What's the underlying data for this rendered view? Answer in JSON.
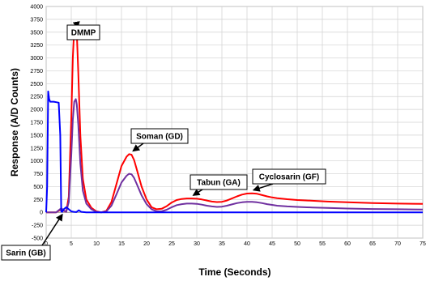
{
  "chart_data": {
    "type": "line",
    "title": "",
    "xlabel": "Time (Seconds)",
    "ylabel": "Response (A/D Counts)",
    "xlim": [
      0,
      75
    ],
    "ylim": [
      -500,
      4000
    ],
    "x_ticks": [
      0,
      5,
      10,
      15,
      20,
      25,
      30,
      35,
      40,
      45,
      50,
      55,
      60,
      65,
      70,
      75
    ],
    "y_ticks": [
      -500,
      -250,
      0,
      250,
      500,
      750,
      1000,
      1250,
      1500,
      1750,
      2000,
      2250,
      2500,
      2750,
      3000,
      3250,
      3500,
      3750,
      4000
    ],
    "grid": true,
    "colors": {
      "red": "#ff0000",
      "purple": "#7030a0",
      "blue": "#0000ff"
    },
    "series": [
      {
        "color": "#ff0000",
        "x": [
          0,
          2,
          3,
          3.5,
          4,
          4.5,
          5,
          5.3,
          5.6,
          5.9,
          6.1,
          6.4,
          6.8,
          7.3,
          8,
          9,
          10,
          11,
          12,
          13,
          14,
          15,
          16,
          16.5,
          17,
          17.5,
          18,
          19,
          20,
          21,
          22,
          23,
          24,
          25,
          26,
          27,
          28,
          29,
          30,
          31,
          32,
          33,
          34,
          35,
          36,
          37,
          38,
          39,
          40,
          41,
          42,
          43,
          44,
          45,
          46,
          48,
          50,
          53,
          56,
          60,
          65,
          70,
          75
        ],
        "values": [
          0,
          0,
          60,
          30,
          10,
          300,
          1800,
          3000,
          3600,
          3650,
          3500,
          2700,
          1500,
          650,
          250,
          90,
          20,
          0,
          30,
          200,
          550,
          900,
          1080,
          1130,
          1120,
          1020,
          850,
          500,
          250,
          100,
          60,
          70,
          120,
          190,
          240,
          260,
          270,
          270,
          265,
          250,
          230,
          210,
          200,
          205,
          230,
          270,
          310,
          345,
          365,
          370,
          360,
          335,
          310,
          290,
          275,
          255,
          240,
          225,
          210,
          195,
          180,
          170,
          165
        ]
      },
      {
        "color": "#7030a0",
        "x": [
          0,
          2,
          3,
          3.5,
          4,
          4.5,
          5,
          5.3,
          5.6,
          5.9,
          6.1,
          6.4,
          6.8,
          7.3,
          8,
          9,
          10,
          11,
          12,
          13,
          14,
          15,
          16,
          16.5,
          17,
          17.5,
          18,
          19,
          20,
          21,
          22,
          23,
          24,
          25,
          26,
          27,
          28,
          29,
          30,
          31,
          32,
          33,
          34,
          35,
          36,
          37,
          38,
          39,
          40,
          41,
          42,
          43,
          44,
          45,
          46,
          48,
          50,
          53,
          56,
          60,
          65,
          70,
          75
        ],
        "values": [
          0,
          0,
          80,
          40,
          10,
          200,
          1100,
          1800,
          2150,
          2200,
          2100,
          1700,
          950,
          420,
          170,
          60,
          10,
          0,
          20,
          130,
          350,
          580,
          710,
          750,
          740,
          670,
          560,
          330,
          160,
          60,
          20,
          20,
          50,
          100,
          140,
          160,
          170,
          170,
          165,
          150,
          130,
          115,
          105,
          110,
          130,
          155,
          180,
          195,
          205,
          205,
          195,
          180,
          160,
          145,
          130,
          115,
          105,
          95,
          85,
          75,
          65,
          60,
          55
        ]
      },
      {
        "color": "#0000ff",
        "x": [
          0,
          0.2,
          0.4,
          0.6,
          0.8,
          1,
          1.5,
          2,
          2.5,
          2.8,
          3,
          3.2,
          3.5,
          4,
          4.5,
          5,
          5.5,
          6,
          6.5,
          7,
          8,
          9,
          10,
          15,
          20,
          25,
          30,
          35,
          40,
          45,
          50,
          55,
          60,
          65,
          70,
          75
        ],
        "values": [
          0,
          500,
          2350,
          2200,
          2150,
          2150,
          2150,
          2140,
          2130,
          1500,
          20,
          10,
          60,
          100,
          60,
          20,
          10,
          5,
          40,
          10,
          0,
          0,
          0,
          0,
          0,
          0,
          0,
          0,
          0,
          0,
          0,
          0,
          0,
          0,
          0,
          0
        ]
      }
    ],
    "annotations": [
      {
        "text": "DMMP",
        "target_x": 5.9,
        "target_y": 3650
      },
      {
        "text": "Soman (GD)",
        "target_x": 17,
        "target_y": 1130
      },
      {
        "text": "Tabun (GA)",
        "target_x": 29,
        "target_y": 270
      },
      {
        "text": "Cyclosarin (GF)",
        "target_x": 41,
        "target_y": 370
      },
      {
        "text": "Sarin (GB)",
        "target_x": 3.2,
        "target_y": 20
      }
    ]
  }
}
